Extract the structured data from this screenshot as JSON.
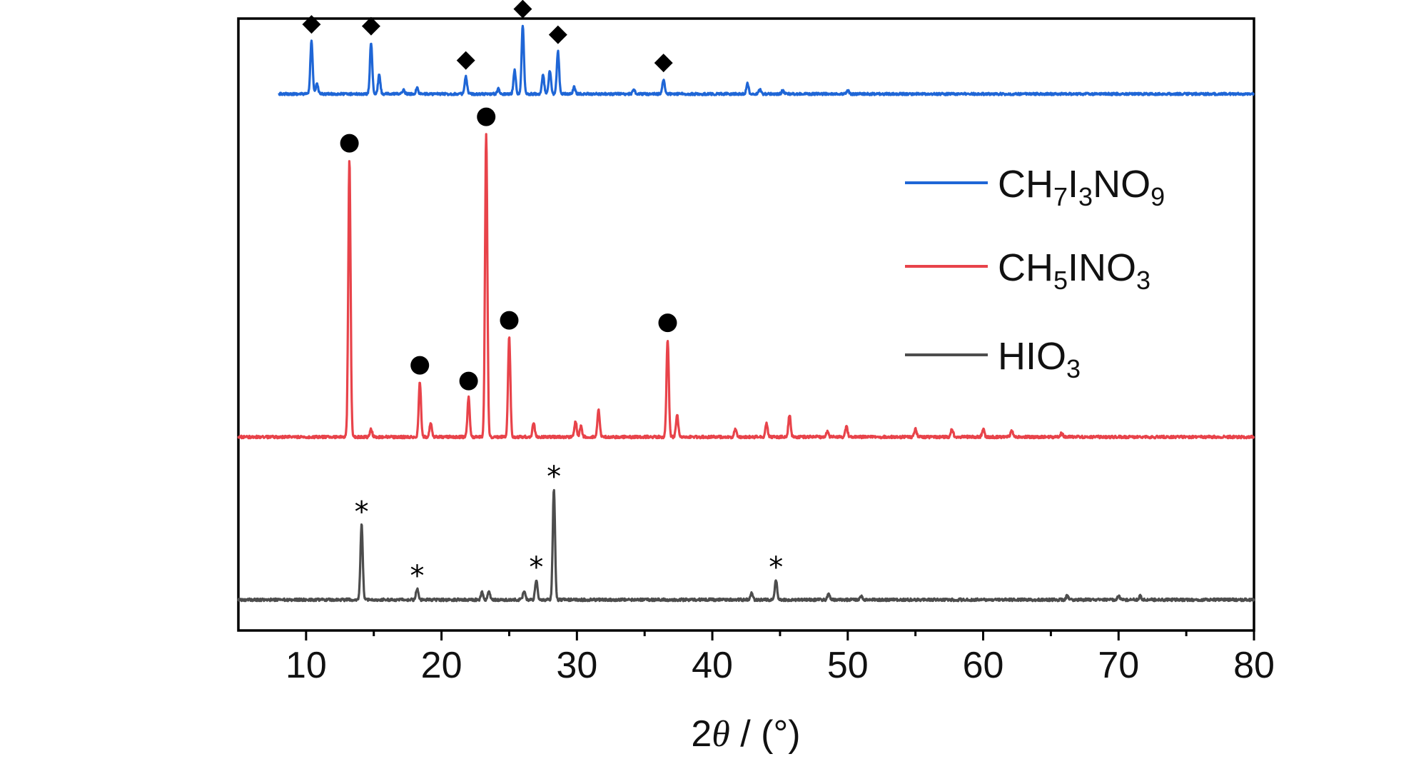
{
  "chart_data": {
    "type": "line",
    "xlabel_prefix": "2",
    "xlabel_symbol": "θ",
    "xlabel_suffix": " / (°)",
    "xlim": [
      5,
      80
    ],
    "x_ticks": [
      10,
      20,
      30,
      40,
      50,
      60,
      70,
      80
    ],
    "y_axis_shown": false,
    "grid": false,
    "legend_position": "right",
    "series": [
      {
        "name_parts": [
          [
            "CH",
            ""
          ],
          [
            "7",
            "sub"
          ],
          [
            "I",
            ""
          ],
          [
            "3",
            "sub"
          ],
          [
            "NO",
            ""
          ],
          [
            "9",
            "sub"
          ]
        ],
        "color": "#1f66d6",
        "marker_symbol": "◆",
        "x_start": 8,
        "baseline": 0.07,
        "peaks": [
          [
            10.4,
            0.62
          ],
          [
            10.8,
            0.12
          ],
          [
            14.8,
            0.6
          ],
          [
            15.4,
            0.22
          ],
          [
            17.2,
            0.05
          ],
          [
            18.2,
            0.07
          ],
          [
            21.8,
            0.2
          ],
          [
            24.2,
            0.06
          ],
          [
            25.4,
            0.28
          ],
          [
            26.0,
            0.8
          ],
          [
            27.5,
            0.22
          ],
          [
            28.0,
            0.27
          ],
          [
            28.6,
            0.5
          ],
          [
            29.8,
            0.08
          ],
          [
            34.2,
            0.05
          ],
          [
            36.4,
            0.17
          ],
          [
            42.6,
            0.12
          ],
          [
            43.5,
            0.06
          ],
          [
            45.2,
            0.04
          ],
          [
            50.0,
            0.04
          ]
        ],
        "marked_peaks": [
          10.4,
          14.8,
          21.8,
          26.0,
          28.6,
          36.4
        ]
      },
      {
        "name_parts": [
          [
            "CH",
            ""
          ],
          [
            "5",
            "sub"
          ],
          [
            "INO",
            ""
          ],
          [
            "3",
            "sub"
          ]
        ],
        "color": "#e8434a",
        "marker_symbol": "●",
        "x_start": 5,
        "baseline": 0.0,
        "peaks": [
          [
            13.2,
            2.1
          ],
          [
            14.8,
            0.06
          ],
          [
            18.4,
            0.42
          ],
          [
            19.2,
            0.1
          ],
          [
            22.0,
            0.3
          ],
          [
            23.3,
            2.3
          ],
          [
            25.0,
            0.76
          ],
          [
            26.8,
            0.11
          ],
          [
            29.9,
            0.12
          ],
          [
            30.3,
            0.08
          ],
          [
            31.6,
            0.2
          ],
          [
            36.7,
            0.74
          ],
          [
            37.4,
            0.17
          ],
          [
            41.7,
            0.06
          ],
          [
            44.0,
            0.1
          ],
          [
            45.7,
            0.17
          ],
          [
            48.5,
            0.04
          ],
          [
            49.9,
            0.08
          ],
          [
            55.0,
            0.06
          ],
          [
            57.7,
            0.06
          ],
          [
            60.0,
            0.06
          ],
          [
            62.1,
            0.05
          ],
          [
            65.8,
            0.03
          ]
        ],
        "marked_peaks": [
          13.2,
          18.4,
          22.0,
          23.3,
          25.0,
          36.7
        ]
      },
      {
        "name_parts": [
          [
            "HIO",
            ""
          ],
          [
            "3",
            "sub"
          ]
        ],
        "color": "#4d4d4d",
        "marker_symbol": "*",
        "x_start": 5,
        "baseline": 0.0,
        "peaks": [
          [
            14.1,
            0.6
          ],
          [
            18.2,
            0.09
          ],
          [
            23.0,
            0.06
          ],
          [
            23.5,
            0.06
          ],
          [
            26.1,
            0.07
          ],
          [
            27.0,
            0.16
          ],
          [
            28.3,
            0.88
          ],
          [
            42.9,
            0.05
          ],
          [
            44.7,
            0.16
          ],
          [
            48.6,
            0.05
          ],
          [
            51.0,
            0.03
          ],
          [
            66.2,
            0.03
          ],
          [
            70.0,
            0.03
          ],
          [
            71.6,
            0.03
          ]
        ],
        "marked_peaks": [
          14.1,
          18.2,
          27.0,
          28.3,
          44.7
        ]
      }
    ]
  }
}
